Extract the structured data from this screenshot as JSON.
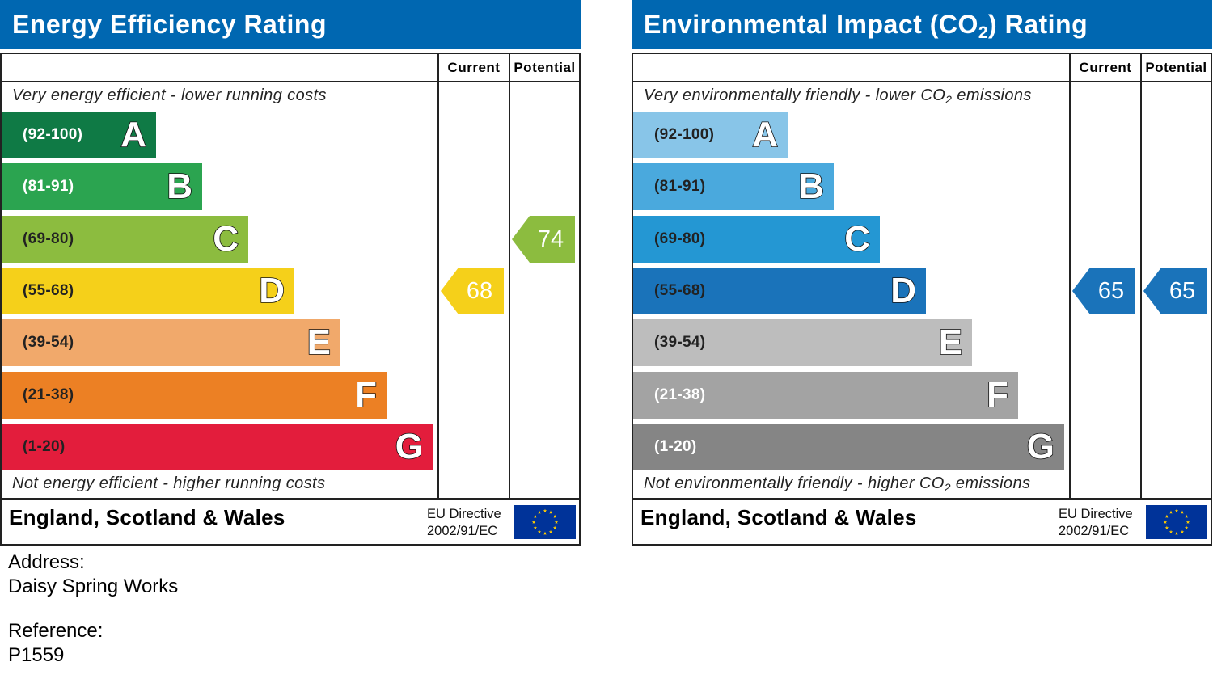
{
  "chart_data": [
    {
      "type": "bar",
      "title": "Energy Efficiency Rating",
      "columns": [
        "Current",
        "Potential"
      ],
      "top_caption": "Very energy efficient - lower running costs",
      "bottom_caption": "Not energy efficient - higher running costs",
      "bands": [
        {
          "range": "(92-100)",
          "letter": "A",
          "color": "#0f7a45",
          "label_color": "#ffffff"
        },
        {
          "range": "(81-91)",
          "letter": "B",
          "color": "#2ba450",
          "label_color": "#ffffff"
        },
        {
          "range": "(69-80)",
          "letter": "C",
          "color": "#8cbc3f",
          "label_color": "#222222"
        },
        {
          "range": "(55-68)",
          "letter": "D",
          "color": "#f5d01a",
          "label_color": "#222222"
        },
        {
          "range": "(39-54)",
          "letter": "E",
          "color": "#f1a96b",
          "label_color": "#222222"
        },
        {
          "range": "(21-38)",
          "letter": "F",
          "color": "#ec8024",
          "label_color": "#222222"
        },
        {
          "range": "(1-20)",
          "letter": "G",
          "color": "#e31d3c",
          "label_color": "#222222"
        }
      ],
      "current": {
        "value": 68,
        "band": "D",
        "color": "#f5d01a"
      },
      "potential": {
        "value": 74,
        "band": "C",
        "color": "#8cbc3f"
      },
      "footer": {
        "country": "England, Scotland & Wales",
        "directive_line1": "EU Directive",
        "directive_line2": "2002/91/EC"
      }
    },
    {
      "type": "bar",
      "title_pre": "Environmental Impact (CO",
      "title_sub": "2",
      "title_post": ") Rating",
      "columns": [
        "Current",
        "Potential"
      ],
      "top_caption_pre": "Very environmentally friendly - lower CO",
      "top_caption_sub": "2",
      "top_caption_post": " emissions",
      "bottom_caption_pre": "Not environmentally friendly - higher CO",
      "bottom_caption_sub": "2",
      "bottom_caption_post": " emissions",
      "bands": [
        {
          "range": "(92-100)",
          "letter": "A",
          "color": "#88c5e8",
          "label_color": "#222222"
        },
        {
          "range": "(81-91)",
          "letter": "B",
          "color": "#4aa9dd",
          "label_color": "#222222"
        },
        {
          "range": "(69-80)",
          "letter": "C",
          "color": "#2497d3",
          "label_color": "#222222"
        },
        {
          "range": "(55-68)",
          "letter": "D",
          "color": "#1a73ba",
          "label_color": "#222222"
        },
        {
          "range": "(39-54)",
          "letter": "E",
          "color": "#bdbdbd",
          "label_color": "#222222"
        },
        {
          "range": "(21-38)",
          "letter": "F",
          "color": "#a3a3a3",
          "label_color": "#ffffff"
        },
        {
          "range": "(1-20)",
          "letter": "G",
          "color": "#858585",
          "label_color": "#ffffff"
        }
      ],
      "current": {
        "value": 65,
        "band": "D",
        "color": "#1a73ba"
      },
      "potential": {
        "value": 65,
        "band": "D",
        "color": "#1a73ba"
      },
      "footer": {
        "country": "England, Scotland & Wales",
        "directive_line1": "EU Directive",
        "directive_line2": "2002/91/EC"
      }
    }
  ],
  "info": {
    "address_label": "Address:",
    "address_value": "Daisy Spring Works",
    "reference_label": "Reference:",
    "reference_value": "P1559"
  },
  "colors": {
    "header_blue": "#0067b1",
    "eu_flag_blue": "#003399",
    "eu_star_yellow": "#ffcc00"
  }
}
